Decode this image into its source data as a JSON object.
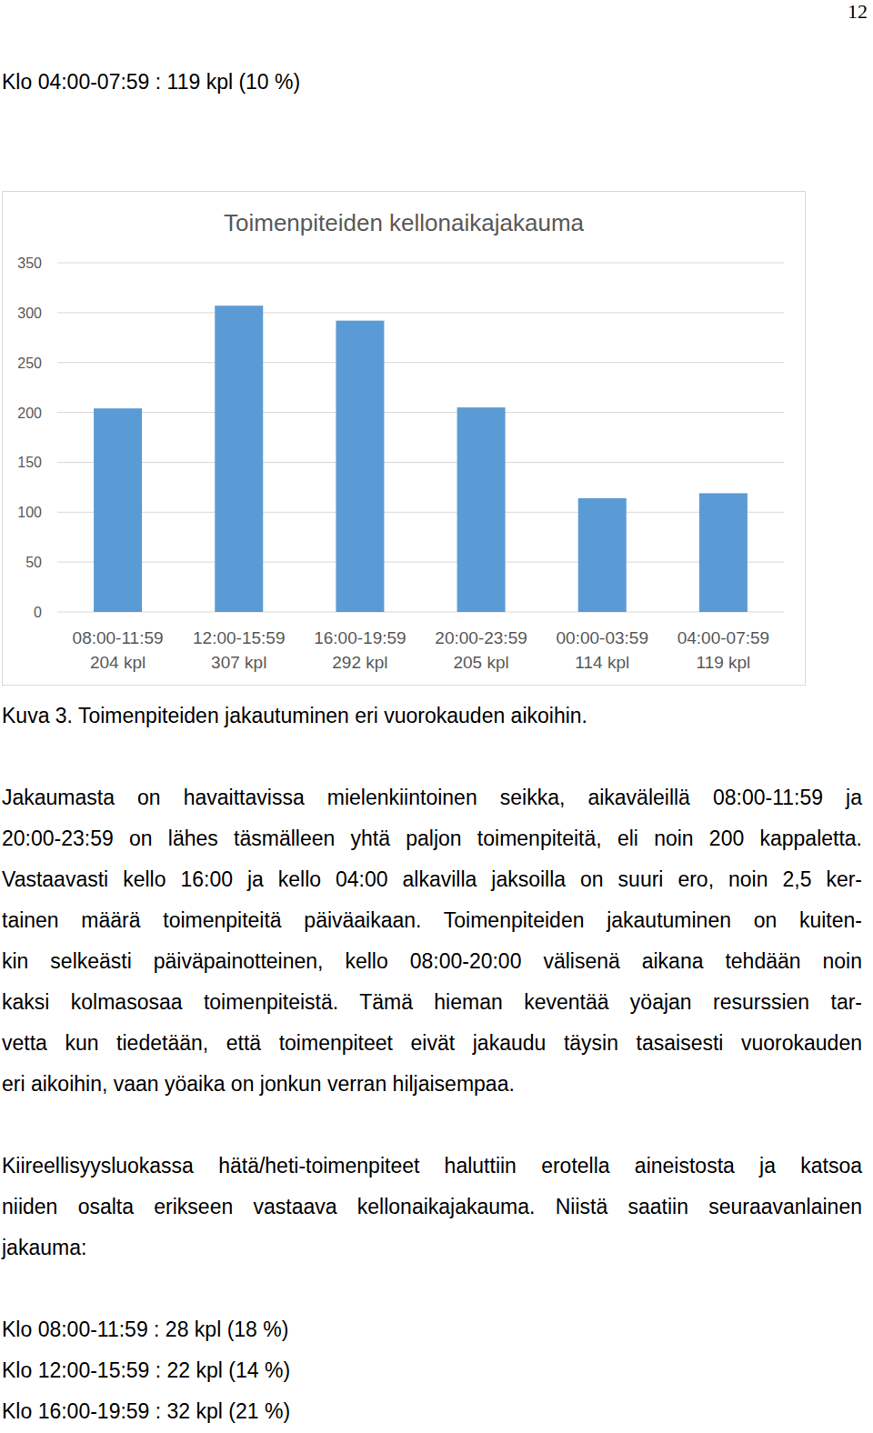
{
  "page_number": "12",
  "intro_line": "Klo 04:00-07:59 : 119 kpl (10 %)",
  "chart_data": {
    "type": "bar",
    "title": "Toimenpiteiden kellonaikajakauma",
    "categories": [
      "08:00-11:59\n204 kpl",
      "12:00-15:59\n307 kpl",
      "16:00-19:59\n292 kpl",
      "20:00-23:59\n205 kpl",
      "00:00-03:59\n114 kpl",
      "04:00-07:59\n119 kpl"
    ],
    "values": [
      204,
      307,
      292,
      205,
      114,
      119
    ],
    "color": "#5b9bd5",
    "ylim": [
      0,
      350
    ],
    "yticks": [
      0,
      50,
      100,
      150,
      200,
      250,
      300,
      350
    ],
    "grid": true
  },
  "caption": "Kuva 3. Toimenpiteiden jakautuminen eri vuorokauden aikoihin.",
  "paragraphs": [
    [
      "Jakaumasta on havaittavissa mielenkiintoinen seikka, aikaväleillä 08:00-11:59 ja",
      "20:00-23:59 on lähes täsmälleen yhtä paljon toimenpiteitä, eli noin 200 kappaletta.",
      "Vastaavasti kello 16:00 ja kello 04:00 alkavilla jaksoilla on suuri ero, noin 2,5 ker-",
      "tainen määrä toimenpiteitä päiväaikaan. Toimenpiteiden jakautuminen on kuiten-",
      "kin selkeästi päiväpainotteinen, kello 08:00-20:00 välisenä aikana tehdään noin",
      "kaksi kolmasosaa toimenpiteistä. Tämä hieman keventää yöajan resurssien tar-",
      "vetta kun tiedetään, että toimenpiteet eivät jakaudu täysin tasaisesti vuorokauden",
      "eri aikoihin, vaan yöaika on jonkun verran hiljaisempaa."
    ],
    [
      "Kiireellisyysluokassa hätä/heti-toimenpiteet haluttiin erotella aineistosta ja katsoa",
      "niiden osalta erikseen vastaava kellonaikajakauma. Niistä saatiin seuraavanlainen",
      "jakauma:"
    ]
  ],
  "list": [
    "Klo 08:00-11:59 : 28 kpl (18 %)",
    "Klo 12:00-15:59 : 22 kpl (14 %)",
    "Klo 16:00-19:59 : 32 kpl (21 %)"
  ]
}
